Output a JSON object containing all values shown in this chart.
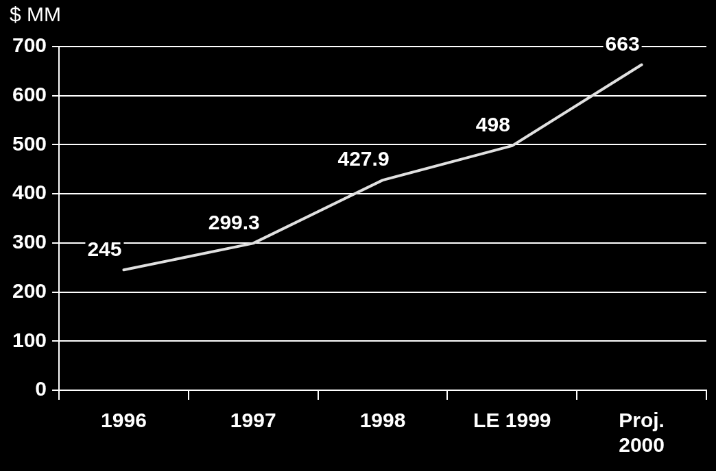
{
  "chart_data": {
    "type": "line",
    "ylabel": "$ MM",
    "categories": [
      "1996",
      "1997",
      "1998",
      "LE 1999",
      "Proj.\n2000"
    ],
    "series": [
      {
        "color": "#e0e0e0",
        "values": [
          245,
          299.3,
          427.9,
          498,
          663
        ]
      }
    ],
    "ylim": [
      0,
      700
    ],
    "yticks": [
      0,
      100,
      200,
      300,
      400,
      500,
      600,
      700
    ],
    "grid": "y",
    "legend": false,
    "marker": "none",
    "line_style": "solid",
    "data_labels": true
  }
}
